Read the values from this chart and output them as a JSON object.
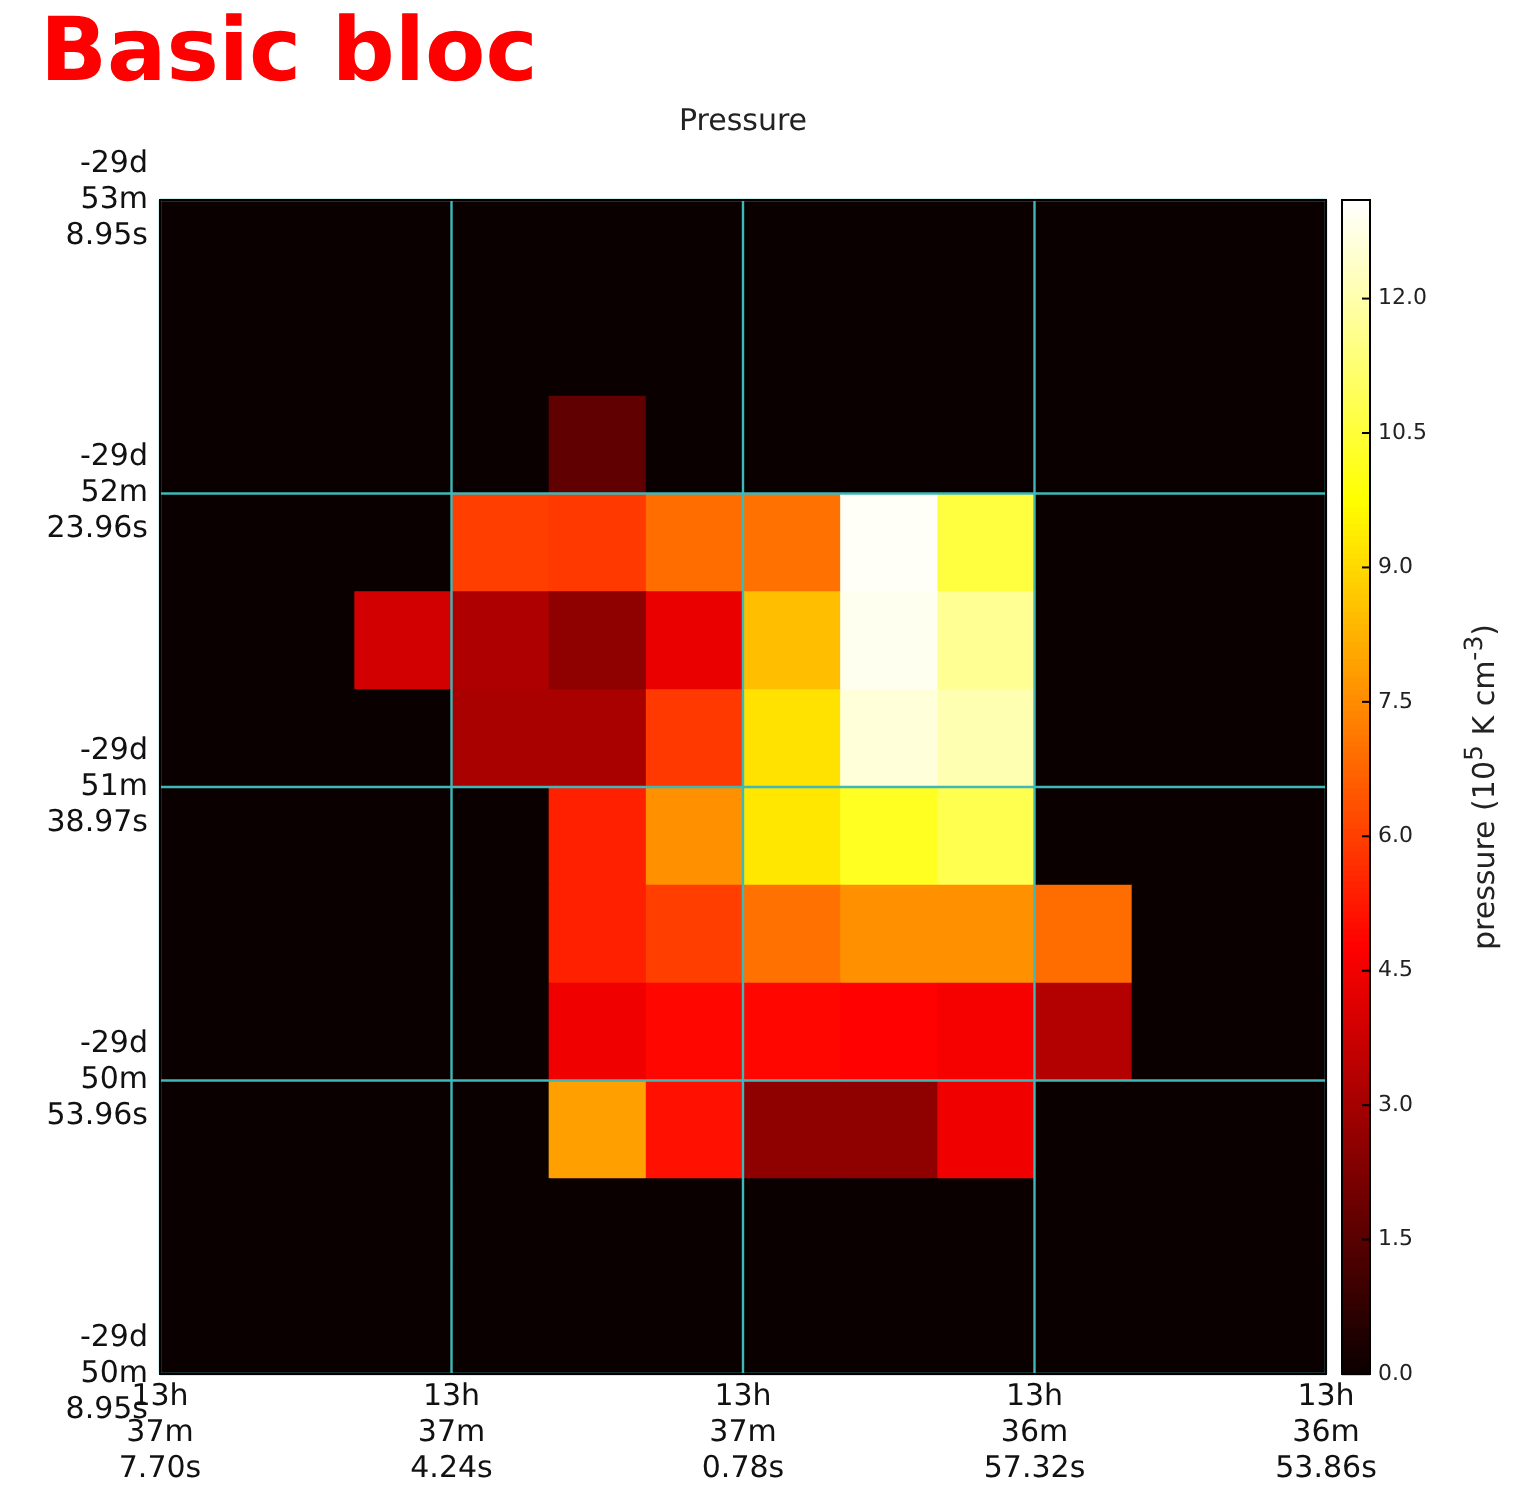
{
  "chart_data": {
    "type": "heatmap",
    "title": "Pressure",
    "clabel": "pressure (10$^{5}$ K cm$^{-3}$)",
    "annotations": [
      "Basic bloc",
      "13h 37m 7.70s",
      "13h 37m 4.24s",
      "13h 37m 0.78s",
      "13h 36m 57.32s",
      "13h 36m 53.86s",
      "-29d 53m 8.95s",
      "-29d 52m 23.96s",
      "-29d 51m 38.97s",
      "-29d 50m 53.96s",
      "-29d 50m 8.95s"
    ],
    "categories": [
      null,
      null,
      null,
      null,
      null,
      null,
      null,
      null,
      null,
      null,
      null,
      null
    ],
    "y_categories": [
      null,
      null,
      null,
      null,
      null,
      null,
      null,
      null,
      null,
      null,
      null,
      null
    ],
    "grid": true,
    "clim": [
      0,
      13.1
    ],
    "cticks": [
      {
        "value": 0,
        "label": "0.0"
      },
      {
        "value": 1.5,
        "label": "1.5"
      },
      {
        "value": 3,
        "label": "3.0"
      },
      {
        "value": 4.5,
        "label": "4.5"
      },
      {
        "value": 6,
        "label": "6.0"
      },
      {
        "value": 7.5,
        "label": "7.5"
      },
      {
        "value": 9,
        "label": "9.0"
      },
      {
        "value": 10.5,
        "label": "10.5"
      },
      {
        "value": 12,
        "label": "12.0"
      }
    ],
    "cells": [
      [
        0,
        0,
        0,
        0,
        0,
        0,
        0,
        0,
        0,
        0,
        0,
        0
      ],
      [
        0,
        0,
        0,
        0,
        0,
        0,
        0,
        0,
        0,
        0,
        0,
        0
      ],
      [
        0,
        0,
        0,
        0,
        1.7,
        0,
        0,
        0,
        0,
        0,
        0,
        0
      ],
      [
        0,
        0,
        0,
        6.0,
        5.9,
        6.9,
        7.0,
        13.0,
        10.6,
        0,
        0,
        0
      ],
      [
        0,
        0,
        3.9,
        3.2,
        2.6,
        4.4,
        8.5,
        12.9,
        11.7,
        0,
        0,
        0
      ],
      [
        0,
        0,
        0,
        3.1,
        3.1,
        5.9,
        9.2,
        12.6,
        12.1,
        0,
        0,
        0
      ],
      [
        0,
        0,
        0,
        0,
        5.4,
        7.6,
        9.3,
        10.2,
        10.8,
        0,
        0,
        0
      ],
      [
        0,
        0,
        0,
        0,
        5.4,
        6.0,
        7.0,
        7.6,
        7.6,
        6.9,
        0,
        0
      ],
      [
        0,
        0,
        0,
        0,
        4.5,
        4.9,
        4.9,
        4.8,
        4.6,
        3.3,
        0,
        0
      ],
      [
        0,
        0,
        0,
        0,
        7.9,
        5.1,
        2.6,
        2.6,
        4.5,
        0,
        0,
        0
      ],
      [
        0,
        0,
        0,
        0,
        0,
        0,
        0,
        0,
        0,
        0,
        0,
        0
      ],
      [
        0,
        0,
        0,
        0,
        0,
        0,
        0,
        0,
        0,
        0,
        0,
        0
      ]
    ]
  }
}
